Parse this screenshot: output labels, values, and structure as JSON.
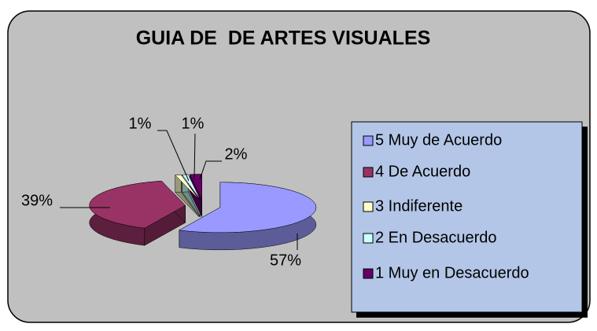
{
  "chart_data": {
    "type": "pie",
    "title": "GUIA DE  DE ARTES VISUALES",
    "categories": [
      "5 Muy de Acuerdo",
      "4 De Acuerdo",
      "3 Indiferente",
      "2 En Desacuerdo",
      "1 Muy en Desacuerdo"
    ],
    "values": [
      57,
      39,
      1,
      1,
      2
    ],
    "value_labels": [
      "57%",
      "39%",
      "1%",
      "1%",
      "2%"
    ],
    "colors": [
      "#9999ff",
      "#993366",
      "#ffffcc",
      "#ccffff",
      "#660066"
    ],
    "legend": "right"
  }
}
